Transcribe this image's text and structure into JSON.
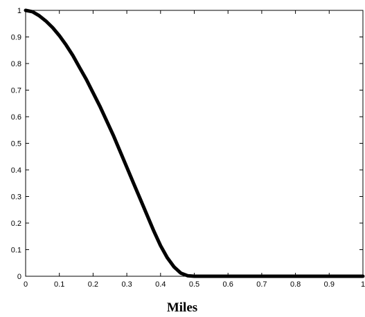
{
  "chart_data": {
    "type": "line",
    "title": "",
    "xlabel": "Miles",
    "ylabel": "",
    "xlim": [
      0,
      1
    ],
    "ylim": [
      0,
      1
    ],
    "x_ticks": [
      "0",
      "0.1",
      "0.2",
      "0.3",
      "0.4",
      "0.5",
      "0.6",
      "0.7",
      "0.8",
      "0.9",
      "1"
    ],
    "y_ticks": [
      "0",
      "0.1",
      "0.2",
      "0.3",
      "0.4",
      "0.5",
      "0.6",
      "0.7",
      "0.8",
      "0.9",
      "1"
    ],
    "grid": false,
    "legend": "none",
    "series": [
      {
        "color": "#000000",
        "x": [
          0,
          0.02,
          0.04,
          0.06,
          0.08,
          0.1,
          0.12,
          0.14,
          0.16,
          0.18,
          0.2,
          0.22,
          0.24,
          0.26,
          0.28,
          0.3,
          0.32,
          0.34,
          0.36,
          0.38,
          0.4,
          0.42,
          0.44,
          0.46,
          0.48,
          0.5,
          0.6,
          0.7,
          0.8,
          0.9,
          1
        ],
        "y": [
          1,
          0.995,
          0.98,
          0.96,
          0.935,
          0.905,
          0.87,
          0.83,
          0.785,
          0.74,
          0.69,
          0.64,
          0.585,
          0.53,
          0.47,
          0.41,
          0.35,
          0.29,
          0.23,
          0.17,
          0.115,
          0.07,
          0.035,
          0.012,
          0.002,
          0,
          0,
          0,
          0,
          0,
          0
        ]
      }
    ]
  }
}
